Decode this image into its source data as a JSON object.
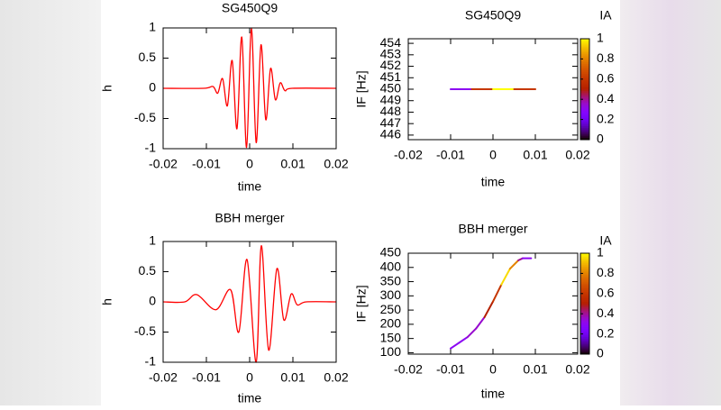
{
  "chart_data": [
    {
      "type": "line",
      "title": "SG450Q9",
      "x_label": "time",
      "y_label": "h",
      "color": "#ff0000",
      "x": [
        -0.02,
        -0.0107,
        -0.00848,
        -0.00737,
        -0.00626,
        -0.00515,
        -0.00404,
        -0.00293,
        -0.00182,
        -0.00071,
        0.0004,
        0.00151,
        0.00262,
        0.00373,
        0.00484,
        0.00595,
        0.00706,
        0.00817,
        0.0098,
        0.02
      ],
      "values": [
        0,
        0,
        0.03,
        -0.08,
        0.16,
        -0.29,
        0.46,
        -0.67,
        0.85,
        -0.98,
        0.99,
        -0.9,
        0.72,
        -0.52,
        0.33,
        -0.19,
        0.09,
        -0.04,
        0,
        0
      ],
      "xlim": [
        -0.02,
        0.02
      ],
      "xticks": [
        -0.02,
        -0.01,
        0,
        0.01,
        0.02
      ],
      "ylim": [
        -1,
        1
      ],
      "yticks": [
        -1,
        -0.5,
        0,
        0.5,
        1
      ]
    },
    {
      "type": "line",
      "title": "SG450Q9",
      "x_label": "time",
      "y_label": "IF [Hz]",
      "x": [
        -0.01,
        -0.005,
        0,
        0.005,
        0.01
      ],
      "values": [
        450,
        450,
        450,
        450,
        450
      ],
      "ia": [
        0.3,
        0.6,
        1,
        0.6,
        0.3
      ],
      "xlim": [
        -0.02,
        0.02
      ],
      "xticks": [
        -0.02,
        -0.01,
        0,
        0.01,
        0.02
      ],
      "ylim": [
        445.6,
        454.4
      ],
      "yticks": [
        446,
        447,
        448,
        449,
        450,
        451,
        452,
        453,
        454
      ],
      "colorbar": {
        "label": "IA",
        "lim": [
          0,
          1
        ],
        "ticks": [
          0,
          0.2,
          0.4,
          0.6,
          0.8,
          1
        ]
      }
    },
    {
      "type": "line",
      "title": "BBH merger",
      "x_label": "time",
      "y_label": "h",
      "color": "#ff0000",
      "x": [
        -0.02,
        -0.015,
        -0.0122,
        -0.0078,
        -0.0044,
        -0.0025,
        -0.0006,
        0.0015,
        0.0027,
        0.0044,
        0.0063,
        0.0079,
        0.0096,
        0.011,
        0.0131,
        0.02
      ],
      "values": [
        0,
        0,
        0.12,
        -0.13,
        0.2,
        -0.5,
        0.7,
        -1,
        0.93,
        -0.8,
        0.55,
        -0.3,
        0.13,
        -0.05,
        0,
        0
      ],
      "xlim": [
        -0.02,
        0.02
      ],
      "xticks": [
        -0.02,
        -0.01,
        0,
        0.01,
        0.02
      ],
      "ylim": [
        -1,
        1
      ],
      "yticks": [
        -1,
        -0.5,
        0,
        0.5,
        1
      ]
    },
    {
      "type": "line",
      "title": "BBH merger",
      "x_label": "time",
      "y_label": "IF [Hz]",
      "x": [
        -0.01,
        -0.008,
        -0.006,
        -0.004,
        -0.002,
        0,
        0.002,
        0.004,
        0.006,
        0.007,
        0.009
      ],
      "values": [
        115,
        135,
        155,
        185,
        225,
        280,
        340,
        395,
        425,
        432,
        432
      ],
      "ia": [
        0.3,
        0.3,
        0.35,
        0.35,
        0.5,
        0.6,
        0.95,
        0.8,
        0.4,
        0.3,
        0.3
      ],
      "xlim": [
        -0.02,
        0.02
      ],
      "xticks": [
        -0.02,
        -0.01,
        0,
        0.01,
        0.02
      ],
      "ylim": [
        95,
        450
      ],
      "yticks": [
        100,
        150,
        200,
        250,
        300,
        350,
        400,
        450
      ],
      "colorbar": {
        "label": "IA",
        "lim": [
          0,
          1
        ],
        "ticks": [
          0,
          0.2,
          0.4,
          0.6,
          0.8,
          1
        ]
      }
    }
  ]
}
